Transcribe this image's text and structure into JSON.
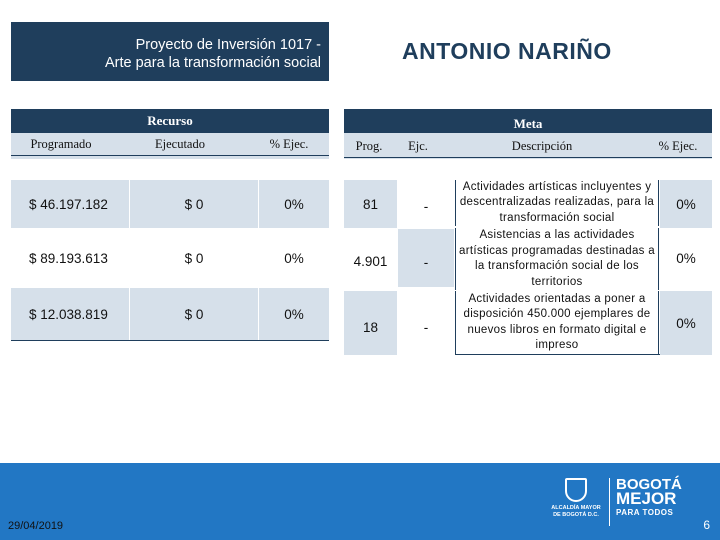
{
  "header": {
    "project_line1": "Proyecto de Inversión 1017 -",
    "project_line2": "Arte para la transformación social",
    "title": "ANTONIO NARIÑO"
  },
  "groups": {
    "recurso": "Recurso",
    "meta": "Meta"
  },
  "columns": {
    "programado": "Programado",
    "ejecutado": "Ejecutado",
    "pct_ejec_recurso": "% Ejec.",
    "prog": "Prog.",
    "ejc": "Ejc.",
    "descripcion": "Descripción",
    "pct_ejec_meta": "% Ejec."
  },
  "rows": [
    {
      "programado": "$ 46.197.182",
      "ejecutado": "$ 0",
      "pct_recurso": "0%",
      "prog": "81",
      "ejc": "-",
      "descripcion": "Actividades artísticas incluyentes y descentralizadas realizadas, para la transformación social",
      "pct_meta": "0%"
    },
    {
      "programado": "$ 89.193.613",
      "ejecutado": "$ 0",
      "pct_recurso": "0%",
      "prog": "4.901",
      "ejc": "-",
      "descripcion": "Asistencias a las actividades artísticas programadas destinadas a la transformación social de los territorios",
      "pct_meta": "0%"
    },
    {
      "programado": "$ 12.038.819",
      "ejecutado": "$ 0",
      "pct_recurso": "0%",
      "prog": "18",
      "ejc": "-",
      "descripcion": "Actividades orientadas a poner a disposición 450.000 ejemplares de nuevos libros en formato digital e impreso",
      "pct_meta": "0%"
    }
  ],
  "footer": {
    "date": "29/04/2019",
    "page_number": "6",
    "logo_alcaldia": "ALCALDÍA MAYOR DE BOGOTÁ D.C.",
    "logo_bogota_l1": "BOGOTÁ",
    "logo_bogota_l2": "MEJOR",
    "logo_bogota_l3": "PARA TODOS"
  },
  "colors": {
    "navy": "#1f3e5c",
    "light_cell": "#d6e0ea",
    "footer_blue": "#2277c4"
  }
}
